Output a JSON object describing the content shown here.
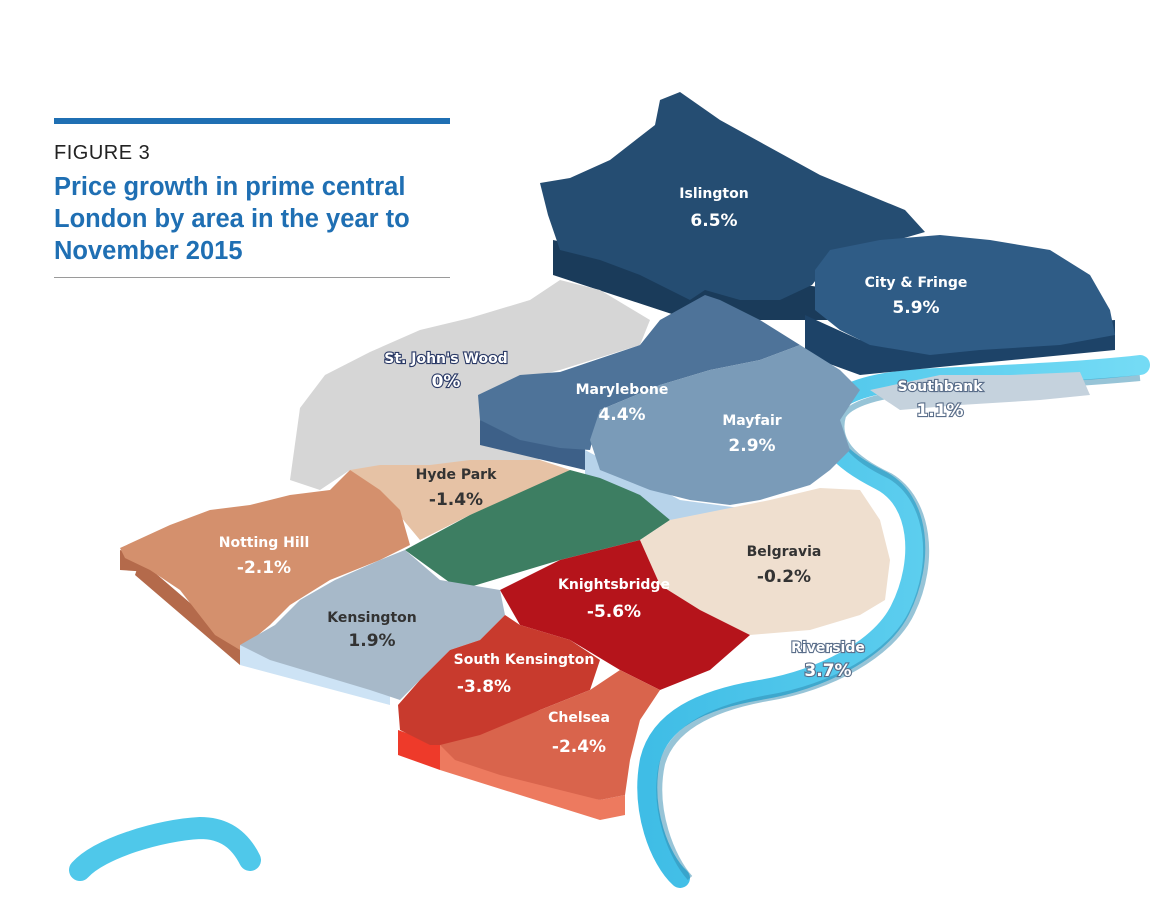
{
  "figure": {
    "label": "FIGURE 3",
    "title": "Price growth in prime central London by area in the year to November 2015"
  },
  "areas": [
    {
      "id": "islington",
      "name": "Islington",
      "value": "6.5%",
      "color": "#254d72"
    },
    {
      "id": "city-fringe",
      "name": "City & Fringe",
      "value": "5.9%",
      "color": "#2f5c86"
    },
    {
      "id": "st-johns-wood",
      "name": "St. John's Wood",
      "value": "0%",
      "color": "#d6d6d6"
    },
    {
      "id": "marylebone",
      "name": "Marylebone",
      "value": "4.4%",
      "color": "#4e7399"
    },
    {
      "id": "mayfair",
      "name": "Mayfair",
      "value": "2.9%",
      "color": "#7a9bb8"
    },
    {
      "id": "southbank",
      "name": "Southbank",
      "value": "1.1%",
      "color": "#c5d2dd"
    },
    {
      "id": "hyde-park",
      "name": "Hyde Park",
      "value": "-1.4%",
      "color": "#e6c2a5"
    },
    {
      "id": "notting-hill",
      "name": "Notting Hill",
      "value": "-2.1%",
      "color": "#d4906d"
    },
    {
      "id": "belgravia",
      "name": "Belgravia",
      "value": "-0.2%",
      "color": "#efdfcf"
    },
    {
      "id": "knightsbridge",
      "name": "Knightsbridge",
      "value": "-5.6%",
      "color": "#b5141b"
    },
    {
      "id": "kensington",
      "name": "Kensington",
      "value": "1.9%",
      "color": "#a7b9c9"
    },
    {
      "id": "south-kensington",
      "name": "South Kensington",
      "value": "-3.8%",
      "color": "#c83a2d"
    },
    {
      "id": "chelsea",
      "name": "Chelsea",
      "value": "-2.4%",
      "color": "#d9644c"
    },
    {
      "id": "riverside",
      "name": "Riverside",
      "value": "3.7%",
      "color": "#5ed3f0"
    }
  ]
}
